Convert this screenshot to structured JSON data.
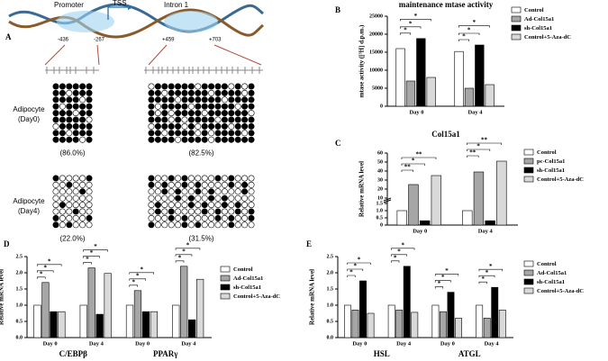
{
  "panel_a": {
    "label": "A",
    "regions": [
      "Promoter",
      "TSS",
      "Intron 1"
    ],
    "positions": [
      "-436",
      "-267",
      "+459",
      "+703"
    ],
    "groups": [
      {
        "label": [
          "Adipocyte",
          "(Day0)"
        ],
        "percentages": [
          "(86.0%)",
          "(82.5%)"
        ]
      },
      {
        "label": [
          "Adipocyte",
          "(Day4)"
        ],
        "percentages": [
          "(22.0%)",
          "(31.5%)"
        ]
      }
    ]
  },
  "chart_data": [
    {
      "type": "bar",
      "panel": "B",
      "title": "maintenance mtase activity",
      "y_label": "mtase activity ([³H] d.p.m.)",
      "categories": [
        "Day 0",
        "Day 4"
      ],
      "series": [
        {
          "name": "Control",
          "color": "#ffffff",
          "values": [
            16000,
            15200
          ]
        },
        {
          "name": "Ad-Col15a1",
          "color": "#a6a6a6",
          "values": [
            7000,
            5000
          ]
        },
        {
          "name": "sh-Col15a1",
          "color": "#000000",
          "values": [
            18800,
            17000
          ]
        },
        {
          "name": "Control+5-Aza-dC",
          "color": "#d9d9d9",
          "values": [
            8000,
            6000
          ]
        }
      ],
      "ylim": [
        0,
        25000
      ],
      "yticks": [
        0,
        5000,
        10000,
        15000,
        20000,
        25000
      ],
      "annotations": [
        "*",
        "*",
        "*",
        "*",
        "*",
        "*"
      ]
    },
    {
      "type": "bar",
      "panel": "C",
      "title": "Col15a1",
      "y_label": "Relative mRNA level",
      "categories": [
        "Day 0",
        "Day 4"
      ],
      "series": [
        {
          "name": "Control",
          "color": "#ffffff",
          "values": [
            1,
            1
          ]
        },
        {
          "name": "pc-Col15a1",
          "color": "#a6a6a6",
          "values": [
            25,
            39
          ]
        },
        {
          "name": "sh-Col15a1",
          "color": "#000000",
          "values": [
            0.3,
            0.3
          ]
        },
        {
          "name": "Control+5-Aza-dC",
          "color": "#d9d9d9",
          "values": [
            35,
            51
          ]
        }
      ],
      "ylim": [
        0,
        60
      ],
      "ybreak": [
        1.5,
        10
      ],
      "yticks": [
        0,
        0.5,
        {
          "value": 1,
          "label": "1.0"
        },
        1.5,
        10,
        20,
        30,
        40,
        50,
        60
      ],
      "annotations": [
        "**",
        "*",
        "**",
        "**",
        "*",
        "**"
      ]
    },
    {
      "type": "bar",
      "panel": "D",
      "y_label": "Relative mRNA level",
      "categories": [
        "Day 0",
        "Day 4",
        "Day 0",
        "Day 4"
      ],
      "groups": [
        "C/EBPβ",
        "PPARγ"
      ],
      "series": [
        {
          "name": "Control",
          "color": "#ffffff",
          "values": [
            1,
            1,
            1,
            1
          ]
        },
        {
          "name": "Ad-Col15a1",
          "color": "#a6a6a6",
          "values": [
            1.7,
            2.15,
            1.45,
            2.2
          ]
        },
        {
          "name": "sh-Col15a1",
          "color": "#000000",
          "values": [
            0.8,
            0.72,
            0.8,
            0.55
          ]
        },
        {
          "name": "Control+5-Aza-dC",
          "color": "#d9d9d9",
          "values": [
            0.8,
            1.98,
            0.8,
            1.8
          ]
        }
      ],
      "ylim": [
        0,
        2.5
      ],
      "yticks": [
        {
          "value": 0,
          "label": "0.0"
        },
        0.5,
        {
          "value": 1,
          "label": "1.0"
        },
        1.5,
        {
          "value": 2,
          "label": "2.0"
        },
        2.5
      ],
      "annotations": [
        "*",
        "*",
        "*",
        "*",
        "*",
        "*",
        "*",
        "*",
        "*",
        "*",
        "*",
        "*"
      ]
    },
    {
      "type": "bar",
      "panel": "E",
      "y_label": "Relative mRNA level",
      "categories": [
        "Day 0",
        "Day 4",
        "Day 0",
        "Day 4"
      ],
      "groups": [
        "HSL",
        "ATGL"
      ],
      "series": [
        {
          "name": "Control",
          "color": "#ffffff",
          "values": [
            1,
            1,
            1,
            1
          ]
        },
        {
          "name": "Ad-Col15a1",
          "color": "#a6a6a6",
          "values": [
            0.85,
            0.85,
            0.8,
            0.6
          ]
        },
        {
          "name": "sh-Col15a1",
          "color": "#000000",
          "values": [
            1.75,
            2.2,
            1.4,
            1.55
          ]
        },
        {
          "name": "Control+5-Aza-dC",
          "color": "#d9d9d9",
          "values": [
            0.75,
            0.78,
            0.6,
            0.85
          ]
        }
      ],
      "ylim": [
        0,
        2.5
      ],
      "yticks": [
        {
          "value": 0,
          "label": "0.0"
        },
        0.5,
        {
          "value": 1,
          "label": "1.0"
        },
        1.5,
        {
          "value": 2,
          "label": "2.0"
        },
        2.5
      ],
      "annotations": [
        "*",
        "*",
        "*",
        "*",
        "*",
        "*",
        "*",
        "*",
        "*",
        "*",
        "*",
        "*"
      ]
    }
  ]
}
